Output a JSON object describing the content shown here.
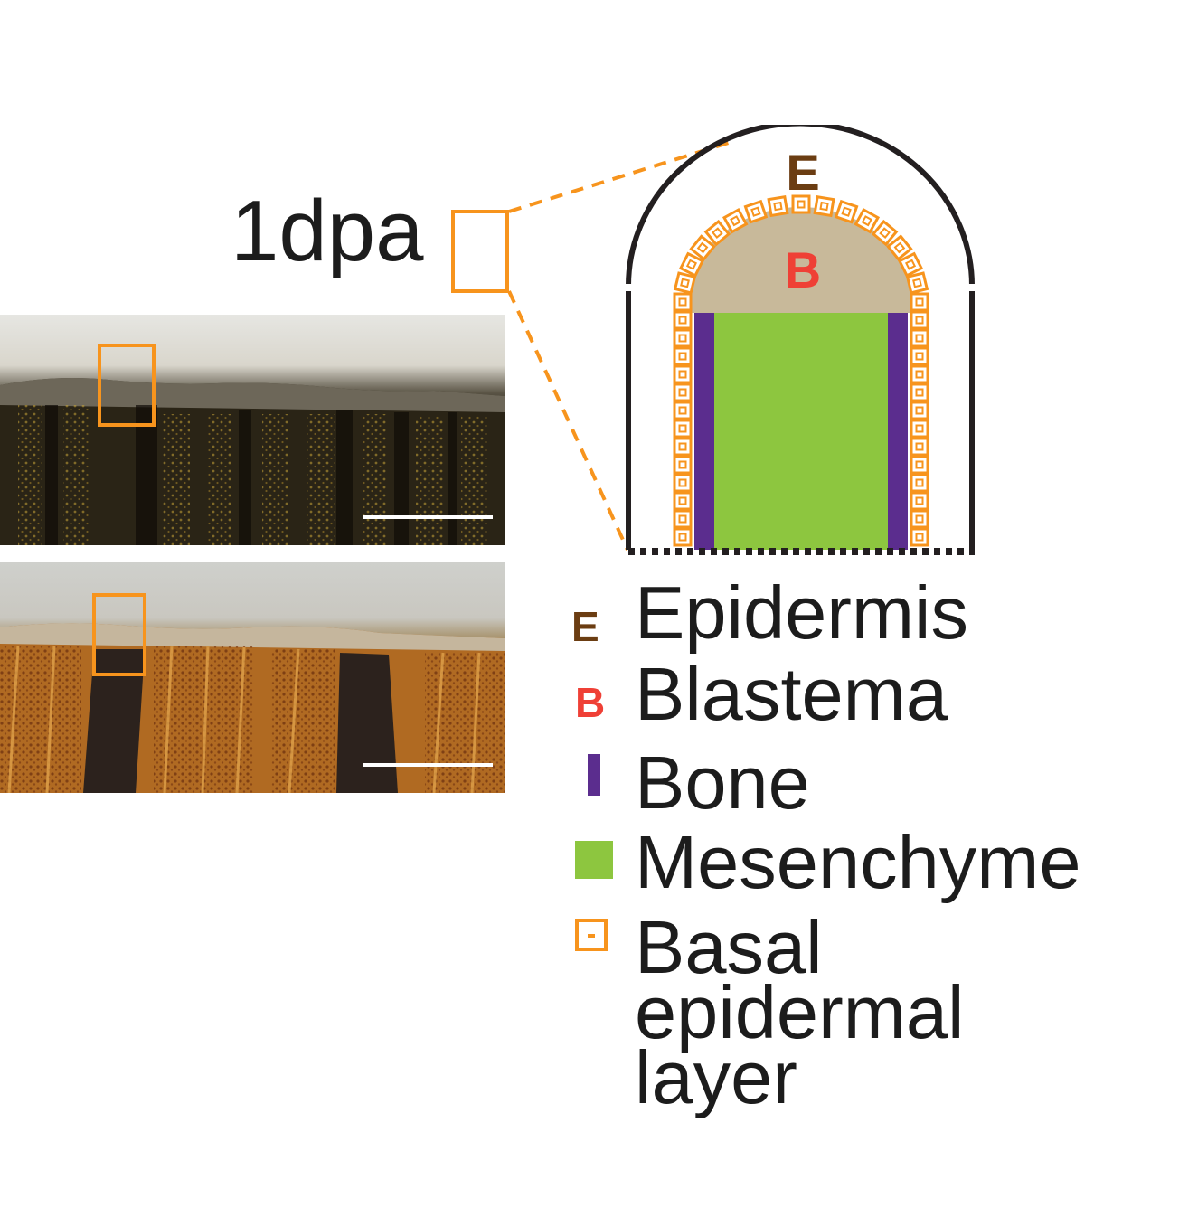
{
  "timepoint_label": "1dpa",
  "diagram": {
    "epidermis_letter": "E",
    "blastema_letter": "B"
  },
  "legend": {
    "items": [
      {
        "key": "epidermis",
        "marker": "E",
        "label": "Epidermis",
        "color": "#6b3d12"
      },
      {
        "key": "blastema",
        "marker": "B",
        "label": "Blastema",
        "color": "#ef4036"
      },
      {
        "key": "bone",
        "marker": "bar",
        "label": "Bone",
        "color": "#5b2d8e"
      },
      {
        "key": "mesenchyme",
        "marker": "square",
        "label": "Mesenchyme",
        "color": "#8dc63f"
      },
      {
        "key": "basal",
        "marker": "cell",
        "label_lines": [
          "Basal",
          "epidermal",
          "layer"
        ],
        "color": "#f7941d"
      }
    ]
  },
  "colors": {
    "highlight_box": "#f7941d",
    "blastema_fill": "#c8b99a",
    "outline": "#231f20",
    "scale_bar": "#ffffff"
  },
  "micrographs": [
    {
      "name": "top-fin-micrograph",
      "style": "dark-pigmented"
    },
    {
      "name": "bottom-fin-micrograph",
      "style": "orange-pigmented"
    }
  ]
}
